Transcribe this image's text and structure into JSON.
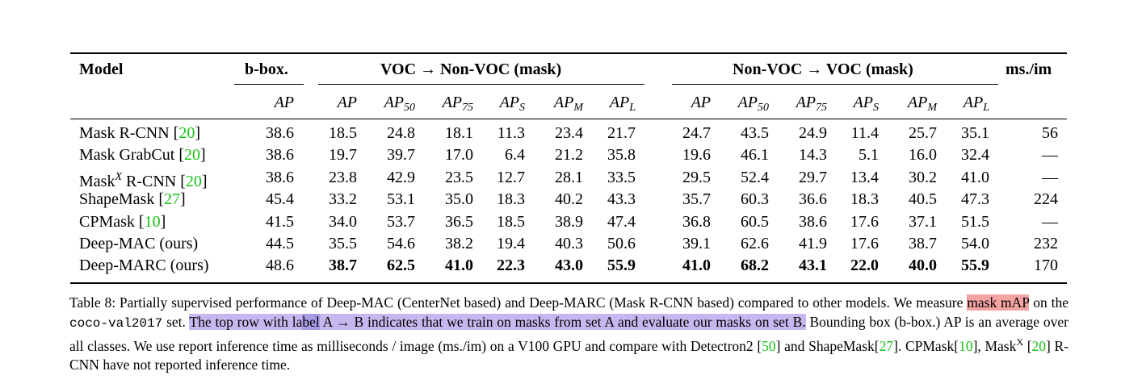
{
  "table": {
    "header_model": "Model",
    "header_bbox": "b-box.",
    "group_voc_to_nonvoc": "VOC → Non-VOC (mask)",
    "group_nonvoc_to_voc": "Non-VOC → VOC (mask)",
    "header_ms": "ms./im",
    "metric_base": "AP",
    "metric_subs": [
      "",
      "50",
      "75",
      "S",
      "M",
      "L"
    ],
    "rows": [
      {
        "model": "Mask R-CNN",
        "ref": "20",
        "sup": "",
        "bbox": "38.6",
        "voc_nonvoc": [
          "18.5",
          "24.8",
          "18.1",
          "11.3",
          "23.4",
          "21.7"
        ],
        "nonvoc_voc": [
          "24.7",
          "43.5",
          "24.9",
          "11.4",
          "25.7",
          "35.1"
        ],
        "ms": "56",
        "bold": false
      },
      {
        "model": "Mask GrabCut",
        "ref": "20",
        "sup": "",
        "bbox": "38.6",
        "voc_nonvoc": [
          "19.7",
          "39.7",
          "17.0",
          "6.4",
          "21.2",
          "35.8"
        ],
        "nonvoc_voc": [
          "19.6",
          "46.1",
          "14.3",
          "5.1",
          "16.0",
          "32.4"
        ],
        "ms": "—",
        "bold": false
      },
      {
        "model": "Mask",
        "model_suffix": " R-CNN",
        "ref": "20",
        "sup": "X",
        "bbox": "38.6",
        "voc_nonvoc": [
          "23.8",
          "42.9",
          "23.5",
          "12.7",
          "28.1",
          "33.5"
        ],
        "nonvoc_voc": [
          "29.5",
          "52.4",
          "29.7",
          "13.4",
          "30.2",
          "41.0"
        ],
        "ms": "—",
        "bold": false
      },
      {
        "model": "ShapeMask",
        "ref": "27",
        "sup": "",
        "bbox": "45.4",
        "voc_nonvoc": [
          "33.2",
          "53.1",
          "35.0",
          "18.3",
          "40.2",
          "43.3"
        ],
        "nonvoc_voc": [
          "35.7",
          "60.3",
          "36.6",
          "18.3",
          "40.5",
          "47.3"
        ],
        "ms": "224",
        "bold": false
      },
      {
        "model": "CPMask",
        "ref": "10",
        "sup": "",
        "bbox": "41.5",
        "voc_nonvoc": [
          "34.0",
          "53.7",
          "36.5",
          "18.5",
          "38.9",
          "47.4"
        ],
        "nonvoc_voc": [
          "36.8",
          "60.5",
          "38.6",
          "17.6",
          "37.1",
          "51.5"
        ],
        "ms": "—",
        "bold": false
      },
      {
        "model": "Deep-MAC (ours)",
        "ref": "",
        "sup": "",
        "bbox": "44.5",
        "voc_nonvoc": [
          "35.5",
          "54.6",
          "38.2",
          "19.4",
          "40.3",
          "50.6"
        ],
        "nonvoc_voc": [
          "39.1",
          "62.6",
          "41.9",
          "17.6",
          "38.7",
          "54.0"
        ],
        "ms": "232",
        "bold": false
      },
      {
        "model": "Deep-MARC (ours)",
        "ref": "",
        "sup": "",
        "bbox": "48.6",
        "voc_nonvoc": [
          "38.7",
          "62.5",
          "41.0",
          "22.3",
          "43.0",
          "55.9"
        ],
        "nonvoc_voc": [
          "41.0",
          "68.2",
          "43.1",
          "22.0",
          "40.0",
          "55.9"
        ],
        "ms": "170",
        "bold": true
      }
    ]
  },
  "caption": {
    "p1": "Table 8: Partially supervised performance of Deep-MAC (CenterNet based) and Deep-MARC (Mask R-CNN based) compared to other models. We measure ",
    "hl_red": "mask mAP",
    "p2": " on the ",
    "code": "coco-val2017",
    "p3": " set. ",
    "hl_blue_a": "The top row with la",
    "hl_blue_b": "bel",
    "hl_blue_c": " A → B indicates that we train on masks from set A and evaluate our masks on set B.",
    "p4": " Bounding box (b-box.) AP is an average over all classes. We use report inference time as milliseconds / image (ms./im) on a V100 GPU and compare with Detectron2 [",
    "ref50": "50",
    "p5": "] and ShapeMask[",
    "ref27": "27",
    "p6": "]. CPMask[",
    "ref10": "10",
    "p7": "], Mask",
    "supX": "X",
    "p8": " [",
    "ref20": "20",
    "p9": "] R-CNN have not reported inference time."
  },
  "colors": {
    "reference": "#16c116",
    "highlight_red": "#f4a3a3",
    "highlight_blue": "#c6b8ee"
  }
}
